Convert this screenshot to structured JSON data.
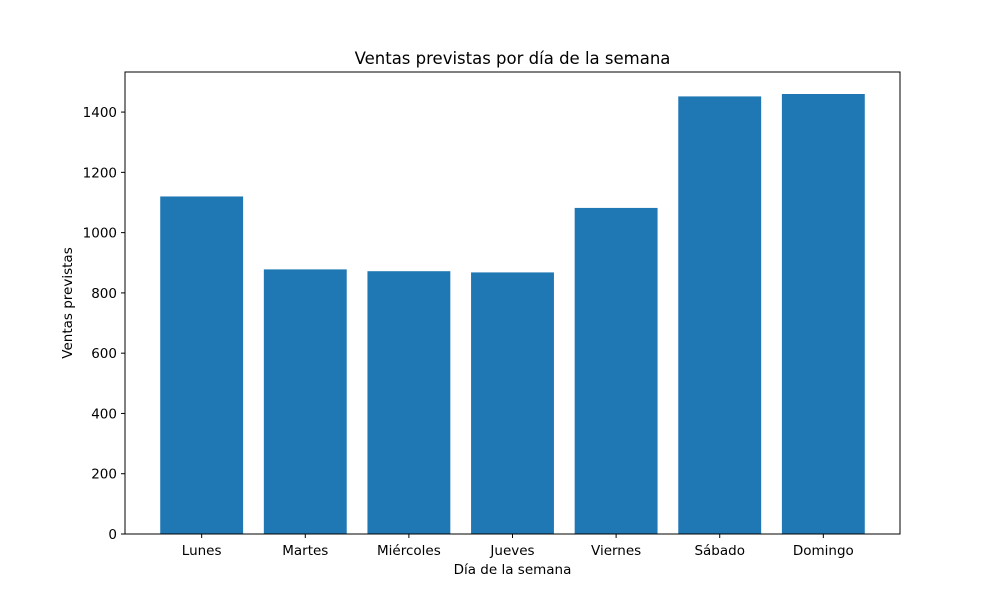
{
  "chart_data": {
    "type": "bar",
    "title": "Ventas previstas por día de la semana",
    "xlabel": "Día de la semana",
    "ylabel": "Ventas previstas",
    "categories": [
      "Lunes",
      "Martes",
      "Miércoles",
      "Jueves",
      "Viernes",
      "Sábado",
      "Domingo"
    ],
    "values": [
      1120,
      878,
      872,
      868,
      1082,
      1452,
      1460
    ],
    "ylim": [
      0,
      1533
    ],
    "yticks": [
      0,
      200,
      400,
      600,
      800,
      1000,
      1200,
      1400
    ],
    "grid": false,
    "legend": "none",
    "bar_color": "#1f77b4"
  }
}
